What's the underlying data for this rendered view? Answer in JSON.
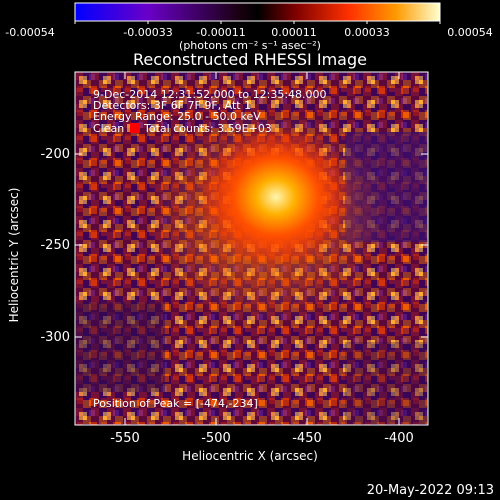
{
  "colorbar": {
    "ticks": [
      "-0.00054",
      "-0.00033",
      "-0.00011",
      "0.00011",
      "0.00033",
      "0.00054"
    ],
    "units": "(photons cm⁻² s⁻¹ asec⁻²)"
  },
  "title": "Reconstructed RHESSI Image",
  "info": {
    "line1": "9-Dec-2014 12:31:52.000 to 12:35:48.000",
    "line2": "Detectors: 3F 6F 7F 9F, Att 1",
    "line3": "Energy Range: 25.0 - 50.0 keV",
    "line4_left": "Clean",
    "line4_right": "Total counts: 3.59E+03",
    "position": "Position of Peak = [-474,-234]"
  },
  "axes": {
    "xlabel": "Heliocentric X (arcsec)",
    "ylabel": "Heliocentric Y (arcsec)",
    "xticks": [
      "-550",
      "-500",
      "-450",
      "-400"
    ],
    "yticks": [
      "-200",
      "-250",
      "-300"
    ]
  },
  "footer": {
    "date": "20-May-2022 09:13"
  },
  "colors": {
    "background": "#000000",
    "axis": "#ffffff",
    "legend_square": "#ff0000"
  }
}
